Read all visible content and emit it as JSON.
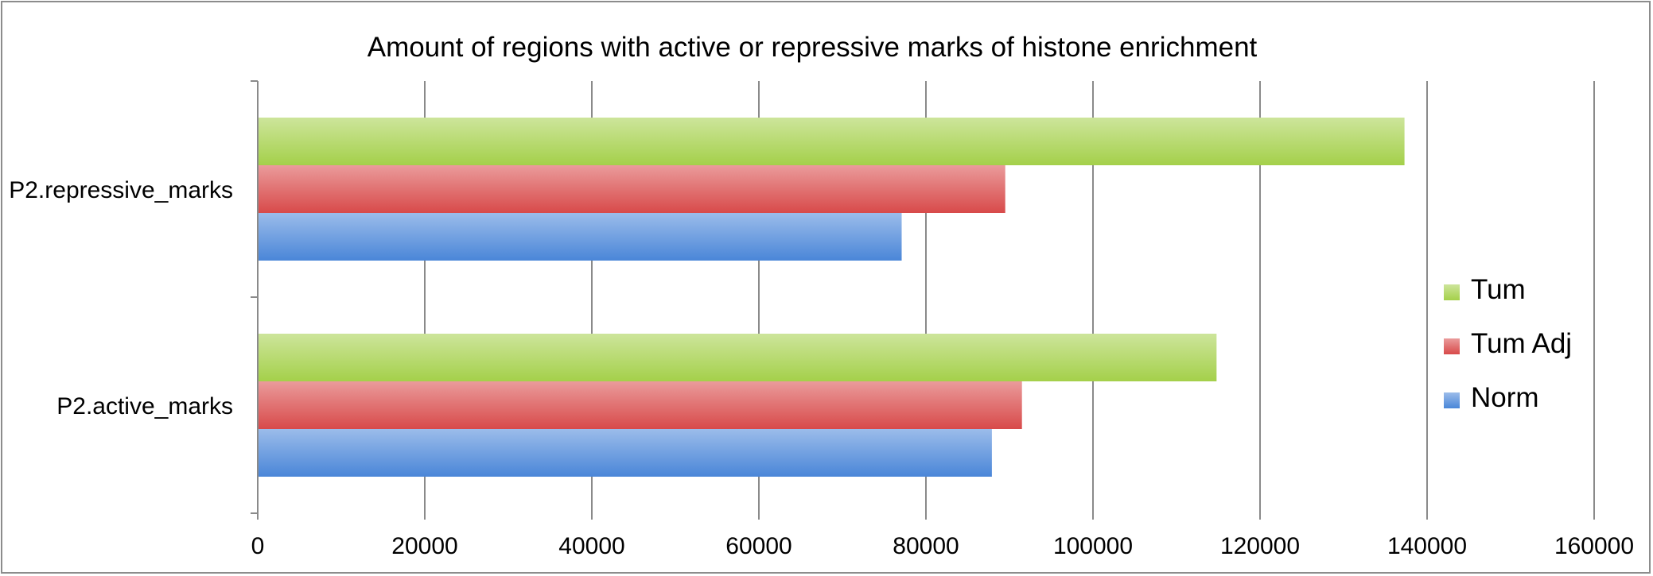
{
  "chart_data": {
    "type": "bar",
    "orientation": "horizontal",
    "title": "Amount of regions with active or repressive marks of histone enrichment",
    "xlabel": "",
    "ylabel": "",
    "categories": [
      "P2.active_marks",
      "P2.repressive_marks"
    ],
    "series": [
      {
        "name": "Norm",
        "values": [
          87800,
          77000
        ],
        "color": "#4a86d8"
      },
      {
        "name": "Tum Adj",
        "values": [
          91400,
          89400
        ],
        "color": "#d84a4a"
      },
      {
        "name": "Tum",
        "values": [
          114700,
          137200
        ],
        "color": "#a4d04a"
      }
    ],
    "xlim": [
      0,
      160000
    ],
    "xticks": [
      "0",
      "20000",
      "40000",
      "60000",
      "80000",
      "100000",
      "120000",
      "140000",
      "160000"
    ],
    "grid": true,
    "legend": {
      "position": "right",
      "items": [
        "Tum",
        "Tum Adj",
        "Norm"
      ]
    }
  }
}
